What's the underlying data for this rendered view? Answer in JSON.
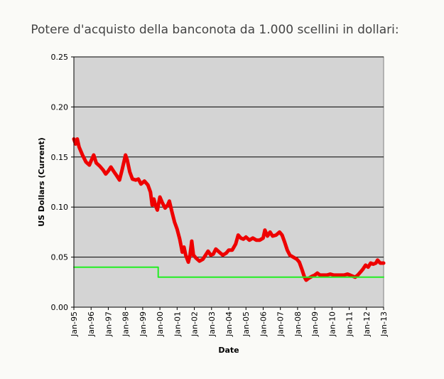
{
  "chart_data": {
    "type": "line",
    "title": "Potere d'acquisto della banconota da 1.000 scellini in dollari:",
    "xlabel": "Date",
    "ylabel": "US Dollars (Current)",
    "ylim": [
      0,
      0.25
    ],
    "yticks": [
      "0.00",
      "0.05",
      "0.10",
      "0.15",
      "0.20",
      "0.25"
    ],
    "grid": true,
    "plot_background": "#d4d4d4",
    "categories": [
      "Jan-95",
      "Jan-96",
      "Jan-97",
      "Jan-98",
      "Jan-99",
      "Jan-00",
      "Jan-01",
      "Jan-02",
      "Jan-03",
      "Jan-04",
      "Jan-05",
      "Jan-06",
      "Jan-07",
      "Jan-08",
      "Jan-09",
      "Jan-10",
      "Jan-11",
      "Jan-12",
      "Jan-13"
    ],
    "series": [
      {
        "color": "#ee0000",
        "points": [
          [
            1995.0,
            0.168
          ],
          [
            1995.1,
            0.163
          ],
          [
            1995.2,
            0.168
          ],
          [
            1995.3,
            0.16
          ],
          [
            1995.5,
            0.152
          ],
          [
            1995.7,
            0.145
          ],
          [
            1995.9,
            0.142
          ],
          [
            1996.0,
            0.146
          ],
          [
            1996.15,
            0.152
          ],
          [
            1996.3,
            0.144
          ],
          [
            1996.5,
            0.141
          ],
          [
            1996.7,
            0.137
          ],
          [
            1996.85,
            0.133
          ],
          [
            1997.0,
            0.136
          ],
          [
            1997.15,
            0.14
          ],
          [
            1997.3,
            0.136
          ],
          [
            1997.5,
            0.131
          ],
          [
            1997.65,
            0.127
          ],
          [
            1997.8,
            0.137
          ],
          [
            1998.0,
            0.152
          ],
          [
            1998.1,
            0.147
          ],
          [
            1998.25,
            0.135
          ],
          [
            1998.4,
            0.128
          ],
          [
            1998.6,
            0.127
          ],
          [
            1998.75,
            0.128
          ],
          [
            1998.9,
            0.123
          ],
          [
            1999.1,
            0.126
          ],
          [
            1999.3,
            0.122
          ],
          [
            1999.45,
            0.115
          ],
          [
            1999.55,
            0.102
          ],
          [
            1999.65,
            0.108
          ],
          [
            1999.75,
            0.101
          ],
          [
            1999.85,
            0.097
          ],
          [
            2000.0,
            0.11
          ],
          [
            2000.15,
            0.104
          ],
          [
            2000.3,
            0.099
          ],
          [
            2000.45,
            0.102
          ],
          [
            2000.55,
            0.106
          ],
          [
            2000.7,
            0.095
          ],
          [
            2000.85,
            0.085
          ],
          [
            2001.0,
            0.078
          ],
          [
            2001.15,
            0.068
          ],
          [
            2001.3,
            0.055
          ],
          [
            2001.4,
            0.06
          ],
          [
            2001.5,
            0.052
          ],
          [
            2001.65,
            0.045
          ],
          [
            2001.75,
            0.052
          ],
          [
            2001.85,
            0.066
          ],
          [
            2001.95,
            0.052
          ],
          [
            2002.1,
            0.049
          ],
          [
            2002.3,
            0.046
          ],
          [
            2002.5,
            0.048
          ],
          [
            2002.65,
            0.052
          ],
          [
            2002.8,
            0.056
          ],
          [
            2002.95,
            0.052
          ],
          [
            2003.1,
            0.053
          ],
          [
            2003.25,
            0.058
          ],
          [
            2003.45,
            0.055
          ],
          [
            2003.65,
            0.052
          ],
          [
            2003.85,
            0.054
          ],
          [
            2004.0,
            0.057
          ],
          [
            2004.2,
            0.057
          ],
          [
            2004.4,
            0.063
          ],
          [
            2004.55,
            0.072
          ],
          [
            2004.7,
            0.069
          ],
          [
            2004.85,
            0.068
          ],
          [
            2005.0,
            0.07
          ],
          [
            2005.2,
            0.067
          ],
          [
            2005.4,
            0.069
          ],
          [
            2005.6,
            0.067
          ],
          [
            2005.8,
            0.067
          ],
          [
            2006.0,
            0.069
          ],
          [
            2006.1,
            0.077
          ],
          [
            2006.25,
            0.071
          ],
          [
            2006.4,
            0.075
          ],
          [
            2006.55,
            0.071
          ],
          [
            2006.75,
            0.072
          ],
          [
            2006.95,
            0.075
          ],
          [
            2007.1,
            0.072
          ],
          [
            2007.25,
            0.065
          ],
          [
            2007.4,
            0.057
          ],
          [
            2007.55,
            0.052
          ],
          [
            2007.75,
            0.05
          ],
          [
            2007.95,
            0.048
          ],
          [
            2008.1,
            0.045
          ],
          [
            2008.25,
            0.038
          ],
          [
            2008.4,
            0.03
          ],
          [
            2008.5,
            0.027
          ],
          [
            2008.65,
            0.029
          ],
          [
            2008.85,
            0.031
          ],
          [
            2009.0,
            0.032
          ],
          [
            2009.15,
            0.034
          ],
          [
            2009.3,
            0.032
          ],
          [
            2009.5,
            0.032
          ],
          [
            2009.7,
            0.032
          ],
          [
            2009.9,
            0.033
          ],
          [
            2010.1,
            0.032
          ],
          [
            2010.3,
            0.032
          ],
          [
            2010.5,
            0.032
          ],
          [
            2010.7,
            0.032
          ],
          [
            2010.9,
            0.033
          ],
          [
            2011.05,
            0.032
          ],
          [
            2011.2,
            0.031
          ],
          [
            2011.35,
            0.03
          ],
          [
            2011.5,
            0.032
          ],
          [
            2011.65,
            0.035
          ],
          [
            2011.8,
            0.038
          ],
          [
            2011.95,
            0.042
          ],
          [
            2012.1,
            0.04
          ],
          [
            2012.25,
            0.044
          ],
          [
            2012.4,
            0.043
          ],
          [
            2012.55,
            0.044
          ],
          [
            2012.65,
            0.047
          ],
          [
            2012.8,
            0.044
          ],
          [
            2013.0,
            0.044
          ]
        ]
      },
      {
        "color": "#22ee22",
        "points": [
          [
            1995.0,
            0.04
          ],
          [
            1999.9,
            0.04
          ],
          [
            1999.9,
            0.03
          ],
          [
            2013.0,
            0.03
          ]
        ]
      }
    ]
  }
}
